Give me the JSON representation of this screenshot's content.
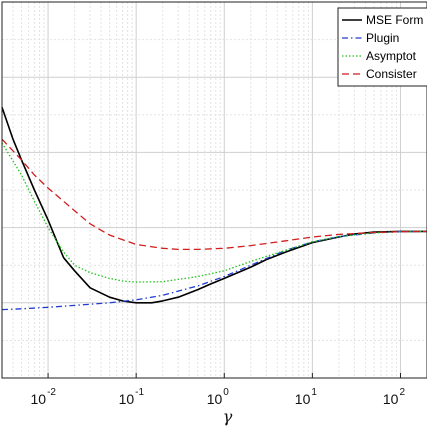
{
  "chart_data": {
    "type": "line",
    "xlabel": "γ",
    "ylabel": "",
    "xscale": "log",
    "xlim": [
      0.003,
      200
    ],
    "ylim": [
      0,
      1
    ],
    "grid": true,
    "legend_placement": "top-right",
    "x_ticks": [
      {
        "base": "10",
        "exp": "-2",
        "value": 0.01
      },
      {
        "base": "10",
        "exp": "-1",
        "value": 0.1
      },
      {
        "base": "10",
        "exp": "0",
        "value": 1
      },
      {
        "base": "10",
        "exp": "1",
        "value": 10
      },
      {
        "base": "10",
        "exp": "2",
        "value": 100
      }
    ],
    "series": [
      {
        "name": "MSE Form",
        "color": "#000000",
        "dash": "solid",
        "x": [
          0.003,
          0.004,
          0.005,
          0.007,
          0.01,
          0.015,
          0.02,
          0.03,
          0.05,
          0.07,
          0.1,
          0.15,
          0.2,
          0.3,
          0.5,
          0.7,
          1,
          2,
          3,
          5,
          10,
          20,
          30,
          50,
          100,
          200
        ],
        "y": [
          0.72,
          0.635,
          0.58,
          0.5,
          0.42,
          0.32,
          0.285,
          0.24,
          0.215,
          0.205,
          0.2,
          0.2,
          0.205,
          0.215,
          0.235,
          0.25,
          0.265,
          0.295,
          0.315,
          0.335,
          0.36,
          0.375,
          0.383,
          0.388,
          0.39,
          0.39
        ]
      },
      {
        "name": "Plugin",
        "color": "#1f3ccf",
        "dash": "dashdot",
        "x": [
          0.003,
          0.005,
          0.01,
          0.02,
          0.05,
          0.1,
          0.2,
          0.5,
          1,
          2,
          5,
          10,
          20,
          50,
          100,
          200
        ],
        "y": [
          0.182,
          0.184,
          0.188,
          0.193,
          0.2,
          0.208,
          0.22,
          0.245,
          0.27,
          0.3,
          0.34,
          0.362,
          0.376,
          0.386,
          0.389,
          0.39
        ]
      },
      {
        "name": "Asymptot",
        "color": "#22c21e",
        "dash": "dotted",
        "x": [
          0.003,
          0.005,
          0.007,
          0.01,
          0.015,
          0.02,
          0.03,
          0.05,
          0.07,
          0.1,
          0.2,
          0.5,
          1,
          2,
          5,
          10,
          20,
          50,
          100,
          200
        ],
        "y": [
          0.625,
          0.54,
          0.47,
          0.4,
          0.335,
          0.3,
          0.28,
          0.265,
          0.258,
          0.255,
          0.256,
          0.27,
          0.285,
          0.31,
          0.34,
          0.362,
          0.376,
          0.386,
          0.389,
          0.39
        ]
      },
      {
        "name": "Consister",
        "color": "#d11f1f",
        "dash": "dashed",
        "x": [
          0.003,
          0.005,
          0.007,
          0.01,
          0.02,
          0.03,
          0.05,
          0.1,
          0.2,
          0.3,
          0.5,
          1,
          2,
          5,
          10,
          20,
          50,
          100,
          200
        ],
        "y": [
          0.635,
          0.58,
          0.54,
          0.505,
          0.445,
          0.41,
          0.38,
          0.355,
          0.345,
          0.342,
          0.342,
          0.345,
          0.352,
          0.365,
          0.375,
          0.382,
          0.387,
          0.389,
          0.39
        ]
      }
    ]
  }
}
